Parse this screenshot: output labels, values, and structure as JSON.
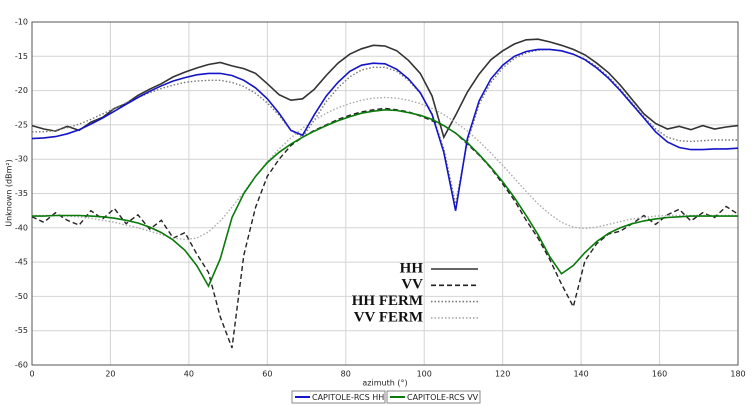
{
  "chart_data": {
    "type": "line",
    "x_label": "azimuth (°)",
    "y_label": "Unknown (dBm²)",
    "xlim": [
      0,
      180
    ],
    "xticks": [
      0,
      20,
      40,
      60,
      80,
      100,
      120,
      140,
      160,
      180
    ],
    "ylim": [
      -60,
      -10
    ],
    "yticks": [
      -60,
      -55,
      -50,
      -45,
      -40,
      -35,
      -30,
      -25,
      -20,
      -15,
      -10
    ],
    "grid": true,
    "x": [
      0,
      3,
      6,
      9,
      12,
      15,
      18,
      21,
      24,
      27,
      30,
      33,
      36,
      39,
      42,
      45,
      48,
      51,
      54,
      57,
      60,
      63,
      66,
      69,
      72,
      75,
      78,
      81,
      84,
      87,
      90,
      93,
      96,
      99,
      102,
      105,
      108,
      111,
      114,
      117,
      120,
      123,
      126,
      129,
      132,
      135,
      138,
      141,
      144,
      147,
      150,
      153,
      156,
      159,
      162,
      165,
      168,
      171,
      174,
      177,
      180
    ],
    "series": [
      {
        "name": "HH",
        "color": "#333333",
        "style": "solid",
        "legend": "inset",
        "values": [
          -25.1,
          -25.6,
          -25.9,
          -25.2,
          -25.8,
          -24.6,
          -23.9,
          -22.6,
          -21.9,
          -20.7,
          -19.8,
          -19,
          -18,
          -17.3,
          -16.7,
          -16.2,
          -15.9,
          -16.4,
          -16.8,
          -17.5,
          -19,
          -20.6,
          -21.4,
          -21.2,
          -19.8,
          -17.8,
          -16,
          -14.7,
          -13.9,
          -13.4,
          -13.5,
          -14.2,
          -15.6,
          -17.5,
          -20.8,
          -26.8,
          -23.6,
          -20.2,
          -17.6,
          -15.5,
          -14.2,
          -13.2,
          -12.6,
          -12.5,
          -12.9,
          -13.4,
          -14,
          -14.8,
          -16,
          -17.4,
          -19.2,
          -21.3,
          -23.4,
          -24.8,
          -25.6,
          -25.2,
          -25.7,
          -25.1,
          -25.6,
          -25.3,
          -25.1
        ]
      },
      {
        "name": "VV",
        "color": "#222222",
        "style": "dashed",
        "legend": "inset",
        "values": [
          -38.4,
          -39.2,
          -37.8,
          -38.9,
          -39.6,
          -37.5,
          -38.7,
          -37.2,
          -39.4,
          -38.1,
          -40.2,
          -38.9,
          -41.5,
          -40.7,
          -43.8,
          -46.5,
          -53,
          -57.5,
          -44,
          -37,
          -32.5,
          -30,
          -28,
          -26.8,
          -25.8,
          -25,
          -24.2,
          -23.6,
          -23.1,
          -22.8,
          -22.6,
          -22.8,
          -23.1,
          -23.7,
          -24.4,
          -25.1,
          -26.2,
          -27.8,
          -29.4,
          -31.3,
          -33.6,
          -36,
          -38.9,
          -41.5,
          -44.6,
          -48.2,
          -51.5,
          -44.8,
          -42.3,
          -40.9,
          -40.5,
          -39.4,
          -38.2,
          -39.5,
          -38.1,
          -37.3,
          -39,
          -37.8,
          -38.5,
          -36.9,
          -38
        ]
      },
      {
        "name": "HH FERM",
        "color": "#777777",
        "style": "dotted",
        "legend": "inset",
        "values": [
          -26,
          -26,
          -25.8,
          -25.4,
          -24.9,
          -24.2,
          -23.4,
          -22.6,
          -21.8,
          -21,
          -20.3,
          -19.7,
          -19.2,
          -18.8,
          -18.6,
          -18.5,
          -18.5,
          -18.8,
          -19.4,
          -20.4,
          -21.8,
          -23.6,
          -25.8,
          -26.8,
          -24.3,
          -21.6,
          -19.6,
          -18,
          -17,
          -16.6,
          -16.6,
          -17.2,
          -18.5,
          -20.4,
          -23.4,
          -28.5,
          -36.5,
          -27.5,
          -22,
          -18.8,
          -16.7,
          -15.3,
          -14.5,
          -14.1,
          -14,
          -14.2,
          -14.7,
          -15.4,
          -16.5,
          -18,
          -19.8,
          -21.8,
          -23.8,
          -25.6,
          -26.8,
          -27.3,
          -27.4,
          -27.3,
          -27.2,
          -27.2,
          -27.2
        ]
      },
      {
        "name": "VV FERM",
        "color": "#aaaaaa",
        "style": "dotted",
        "legend": "inset",
        "values": [
          -38.2,
          -38.2,
          -38.2,
          -38.3,
          -38.4,
          -38.6,
          -38.9,
          -39.2,
          -39.6,
          -40,
          -40.5,
          -41,
          -41.5,
          -41.7,
          -41.5,
          -40.6,
          -39,
          -37,
          -34.8,
          -32.5,
          -30.4,
          -28.5,
          -26.9,
          -25.5,
          -24.3,
          -23.3,
          -22.5,
          -21.9,
          -21.4,
          -21.1,
          -21,
          -21.1,
          -21.4,
          -21.9,
          -22.6,
          -23.5,
          -24.6,
          -25.9,
          -27.4,
          -29.1,
          -30.9,
          -32.8,
          -34.7,
          -36.5,
          -38,
          -39.2,
          -39.9,
          -40.1,
          -39.9,
          -39.5,
          -39.1,
          -38.7,
          -38.5,
          -38.3,
          -38.2,
          -38.2,
          -38.2,
          -38.2,
          -38.2,
          -38.2,
          -38.2
        ]
      },
      {
        "name": "CAPITOLE-RCS HH",
        "color": "#1414c8",
        "style": "solid",
        "legend": "bottom",
        "values": [
          -27,
          -26.9,
          -26.7,
          -26.3,
          -25.7,
          -24.9,
          -24,
          -23,
          -22,
          -21,
          -20.1,
          -19.3,
          -18.6,
          -18.1,
          -17.7,
          -17.5,
          -17.5,
          -17.8,
          -18.5,
          -19.6,
          -21.2,
          -23.3,
          -25.8,
          -26.5,
          -23.5,
          -20.8,
          -18.8,
          -17.2,
          -16.3,
          -16,
          -16.1,
          -16.9,
          -18.3,
          -20.3,
          -23.5,
          -29,
          -37.5,
          -27,
          -21.5,
          -18.3,
          -16.3,
          -15,
          -14.3,
          -14,
          -14,
          -14.2,
          -14.7,
          -15.5,
          -16.7,
          -18.2,
          -20,
          -22,
          -24,
          -26,
          -27.5,
          -28.3,
          -28.6,
          -28.6,
          -28.5,
          -28.5,
          -28.4
        ]
      },
      {
        "name": "CAPITOLE-RCS VV",
        "color": "#0a7a0a",
        "style": "solid",
        "legend": "bottom",
        "values": [
          -38.3,
          -38.3,
          -38.2,
          -38.2,
          -38.2,
          -38.3,
          -38.4,
          -38.6,
          -38.9,
          -39.3,
          -39.9,
          -40.7,
          -41.8,
          -43.3,
          -45.5,
          -48.5,
          -44.5,
          -38.5,
          -35,
          -32.5,
          -30.5,
          -29,
          -27.8,
          -26.8,
          -25.9,
          -25.1,
          -24.4,
          -23.8,
          -23.3,
          -23,
          -22.8,
          -22.9,
          -23.2,
          -23.6,
          -24.2,
          -25.1,
          -26.2,
          -27.6,
          -29.3,
          -31.2,
          -33.3,
          -35.6,
          -38.2,
          -41,
          -44.2,
          -46.7,
          -45.5,
          -43.6,
          -42,
          -40.8,
          -40,
          -39.4,
          -39,
          -38.7,
          -38.5,
          -38.4,
          -38.3,
          -38.3,
          -38.3,
          -38.3,
          -38.3
        ]
      }
    ]
  }
}
